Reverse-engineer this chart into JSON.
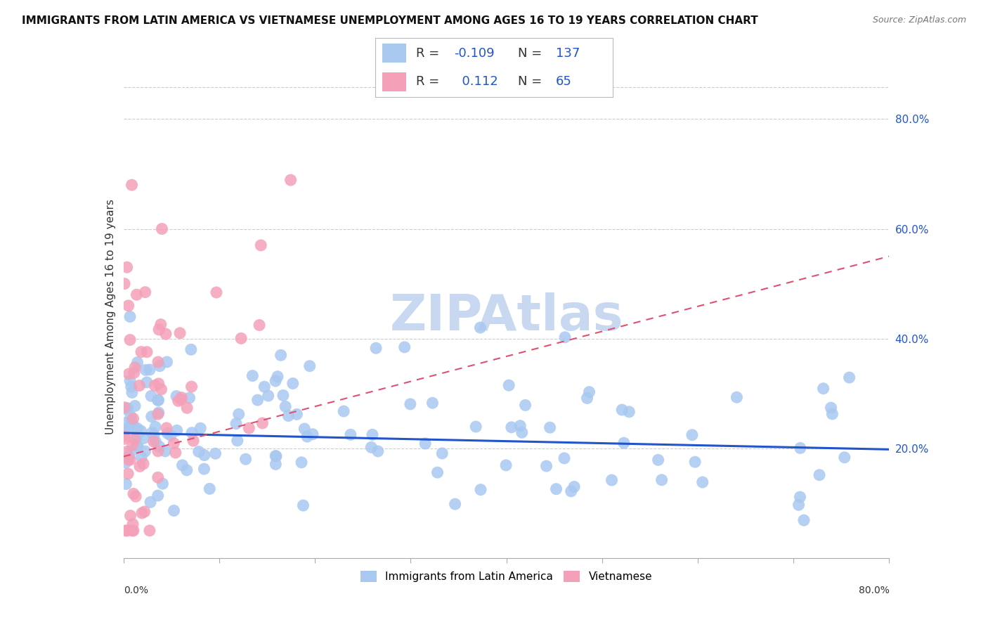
{
  "title": "IMMIGRANTS FROM LATIN AMERICA VS VIETNAMESE UNEMPLOYMENT AMONG AGES 16 TO 19 YEARS CORRELATION CHART",
  "source": "Source: ZipAtlas.com",
  "ylabel": "Unemployment Among Ages 16 to 19 years",
  "xmin": 0.0,
  "xmax": 0.8,
  "ymin": 0.0,
  "ymax": 0.88,
  "right_yticks": [
    0.2,
    0.4,
    0.6,
    0.8
  ],
  "right_yticklabels": [
    "20.0%",
    "40.0%",
    "60.0%",
    "80.0%"
  ],
  "blue_color": "#a8c8f0",
  "pink_color": "#f4a0b8",
  "blue_line_color": "#2255cc",
  "pink_line_color": "#e05070",
  "legend_blue_label": "Immigrants from Latin America",
  "legend_pink_label": "Vietnamese",
  "R_blue": -0.109,
  "N_blue": 137,
  "R_pink": 0.112,
  "N_pink": 65,
  "blue_trend_start_y": 0.228,
  "blue_trend_end_y": 0.198,
  "pink_trend_start_y": 0.185,
  "pink_trend_end_y": 0.55,
  "background_color": "#ffffff",
  "grid_color": "#cccccc",
  "watermark": "ZIPAtlas",
  "watermark_color": "#c8d8f0",
  "title_fontsize": 11,
  "source_fontsize": 9,
  "legend_fontsize": 11,
  "stats_fontsize": 13,
  "axis_label_fontsize": 11
}
